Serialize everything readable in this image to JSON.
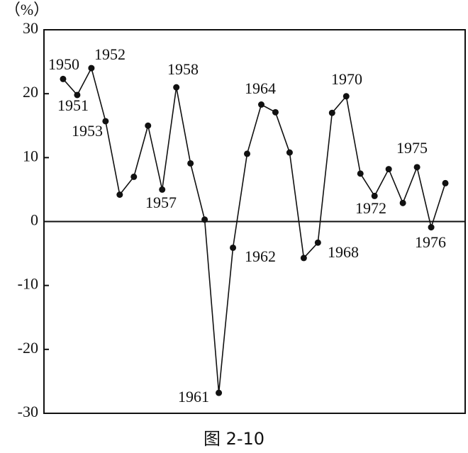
{
  "chart_data": {
    "type": "line",
    "y_label": "（%）",
    "caption": "图 2-10",
    "x": [
      1950,
      1951,
      1952,
      1953,
      1954,
      1955,
      1956,
      1957,
      1958,
      1959,
      1960,
      1961,
      1962,
      1963,
      1964,
      1965,
      1966,
      1967,
      1968,
      1969,
      1970,
      1971,
      1972,
      1973,
      1974,
      1975,
      1976,
      1977
    ],
    "xlim": [
      1948.65,
      1978.4
    ],
    "series": [
      {
        "color": "#111111",
        "values": [
          22.3,
          19.8,
          24.0,
          15.7,
          4.2,
          7.0,
          15.0,
          5.0,
          21.0,
          9.1,
          0.3,
          -26.8,
          -4.1,
          10.6,
          18.3,
          17.1,
          10.8,
          -5.7,
          -3.3,
          17.0,
          19.6,
          7.5,
          4.0,
          8.2,
          2.9,
          8.5,
          -0.9,
          6.0
        ]
      }
    ],
    "annotations": [
      "1950",
      "1951",
      "1952",
      "1953",
      "1957",
      "1958",
      "1961",
      "1962",
      "1964",
      "1968",
      "1970",
      "1972",
      "1975",
      "1976"
    ],
    "ylim": [
      -30,
      30
    ],
    "yticks": [
      30,
      20,
      10,
      0,
      -10,
      -20,
      -30
    ],
    "grid": false
  }
}
